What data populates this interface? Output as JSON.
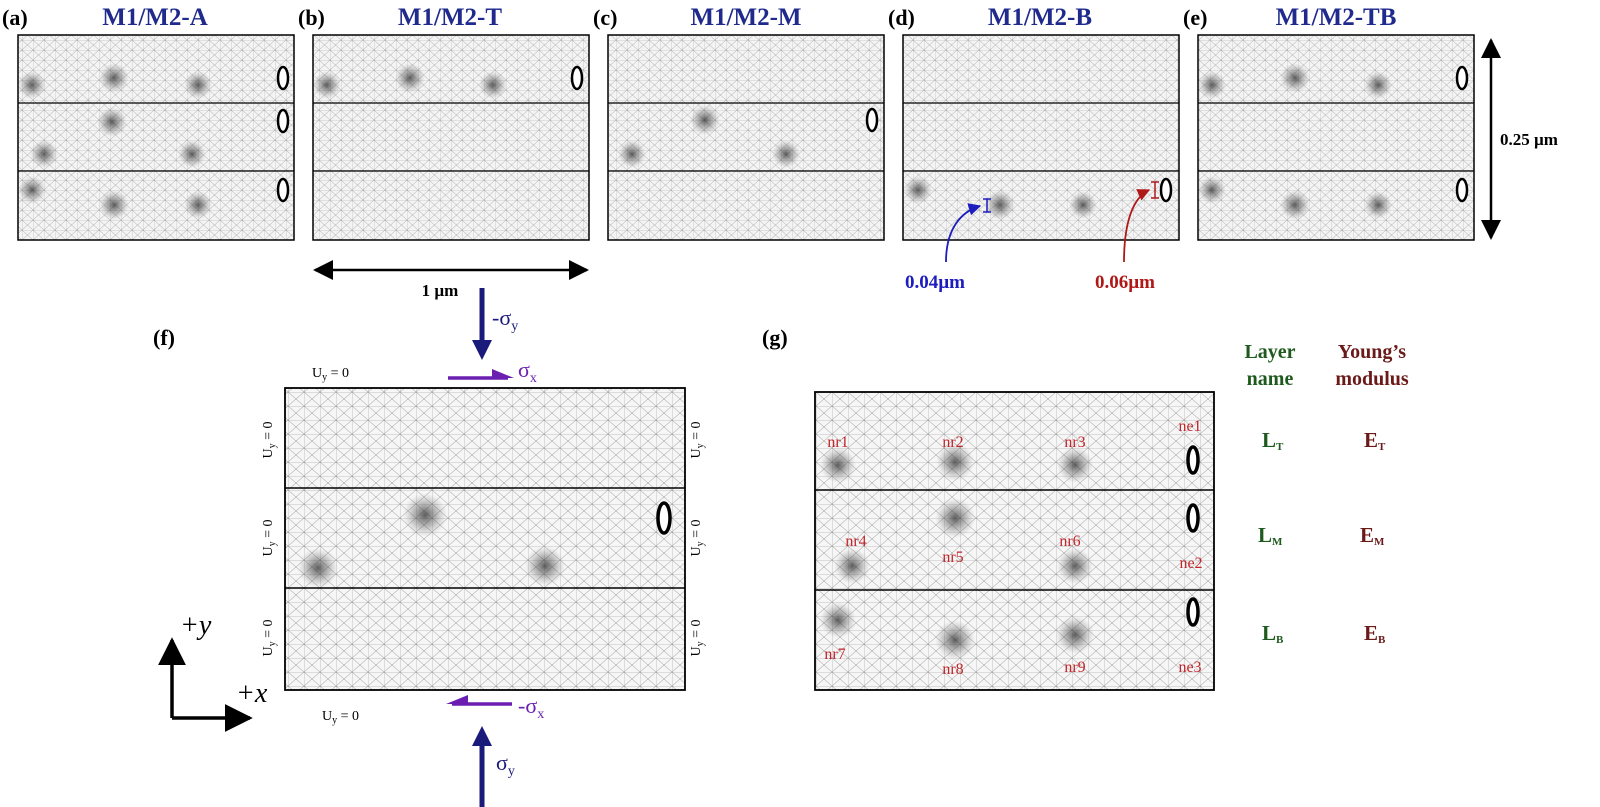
{
  "panels_top": [
    {
      "label": "(a)",
      "title": "M1/M2-A"
    },
    {
      "label": "(b)",
      "title": "M1/M2-T"
    },
    {
      "label": "(c)",
      "title": "M1/M2-M"
    },
    {
      "label": "(d)",
      "title": "M1/M2-B"
    },
    {
      "label": "(e)",
      "title": "M1/M2-TB"
    }
  ],
  "dims": {
    "height": "0.25 µm",
    "width": "1 µm"
  },
  "annotations": {
    "left": "0.04µm",
    "right": "0.06µm"
  },
  "panel_f": {
    "label": "(f)",
    "stress_top_y": "-σ",
    "stress_top_y_sub": "y",
    "stress_top_x": "σ",
    "stress_top_x_sub": "x",
    "stress_bottom_x": "-σ",
    "stress_bottom_x_sub": "x",
    "stress_bottom_y": "σ",
    "stress_bottom_y_sub": "y",
    "bc_main": "U",
    "bc_sub": "y",
    "bc_value": " = 0",
    "axis_y": "+y",
    "axis_x": "+x"
  },
  "panel_g": {
    "label": "(g)",
    "nodes": [
      "nr1",
      "nr2",
      "nr3",
      "ne1",
      "nr4",
      "nr5",
      "nr6",
      "ne2",
      "nr7",
      "nr8",
      "nr9",
      "ne3"
    ],
    "header_layer": [
      "Layer",
      "name"
    ],
    "header_modulus": [
      "Young’s",
      "modulus"
    ],
    "layers": [
      {
        "L": "L",
        "Lsub": "T",
        "E": "E",
        "Esub": "T"
      },
      {
        "L": "L",
        "Lsub": "M",
        "E": "E",
        "Esub": "M"
      },
      {
        "L": "L",
        "Lsub": "B",
        "E": "E",
        "Esub": "B"
      }
    ]
  },
  "colors": {
    "title": "#1f2a8c",
    "node": "#c0262b",
    "layer": "#1e5a1e",
    "modulus": "#6b1a1a"
  }
}
